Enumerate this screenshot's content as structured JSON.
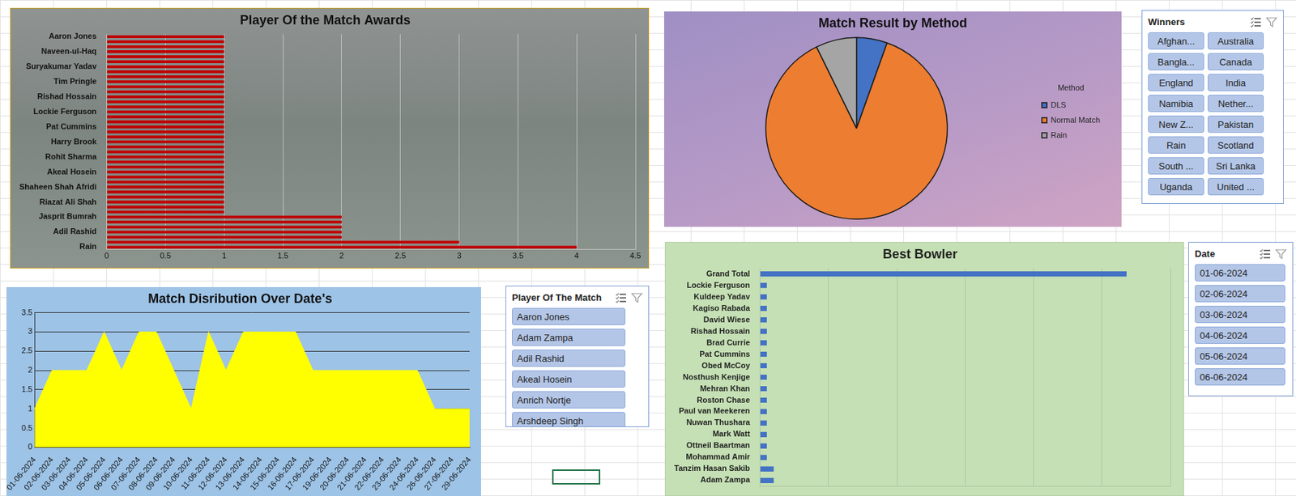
{
  "chart_data": [
    {
      "type": "bar",
      "title": "Player Of the Match Awards",
      "orientation": "horizontal",
      "categories": [
        "Aaron Jones",
        null,
        null,
        "Naveen-ul-Haq",
        null,
        null,
        "Suryakumar Yadav",
        null,
        null,
        "Tim Pringle",
        null,
        null,
        "Rishad Hossain",
        null,
        null,
        "Lockie Ferguson",
        null,
        null,
        "Pat Cummins",
        null,
        null,
        "Harry Brook",
        null,
        null,
        "Rohit Sharma",
        null,
        null,
        "Akeal Hosein",
        null,
        null,
        "Shaheen Shah Afridi",
        null,
        null,
        "Riazat Ali Shah",
        null,
        null,
        "Jasprit Bumrah",
        null,
        null,
        "Adil Rashid",
        null,
        null,
        "Rain"
      ],
      "values": [
        1,
        1,
        1,
        1,
        1,
        1,
        1,
        1,
        1,
        1,
        1,
        1,
        1,
        1,
        1,
        1,
        1,
        1,
        1,
        1,
        1,
        1,
        1,
        1,
        1,
        1,
        1,
        1,
        1,
        1,
        1,
        1,
        1,
        1,
        1,
        1,
        2,
        2,
        2,
        2,
        2,
        3,
        4
      ],
      "color": "#c00000",
      "xlim": [
        0,
        4.5
      ],
      "xticks": [
        0,
        0.5,
        1,
        1.5,
        2,
        2.5,
        3,
        3.5,
        4,
        4.5
      ],
      "grid": true
    },
    {
      "type": "pie",
      "title": "Match Result by Method",
      "legend_title": "Method",
      "categories": [
        "DLS",
        "Normal Match",
        "Rain"
      ],
      "values": [
        3,
        48,
        4
      ],
      "colors": [
        "#4472c4",
        "#ed7d31",
        "#a5a5a5"
      ],
      "legend": "right"
    },
    {
      "type": "area",
      "title": "Match Disribution Over Date's",
      "categories": [
        "01-06-2024",
        "02-06-2024",
        "03-06-2024",
        "04-06-2024",
        "05-06-2024",
        "06-06-2024",
        "07-06-2024",
        "08-06-2024",
        "09-06-2024",
        "10-06-2024",
        "11-06-2024",
        "12-06-2024",
        "13-06-2024",
        "14-06-2024",
        "15-06-2024",
        "16-06-2024",
        "17-06-2024",
        "19-06-2024",
        "20-06-2024",
        "21-06-2024",
        "22-06-2024",
        "23-06-2024",
        "24-06-2024",
        "26-06-2024",
        "27-06-2024",
        "29-06-2024"
      ],
      "values": [
        1,
        2,
        2,
        2,
        3,
        2,
        3,
        3,
        2,
        1,
        3,
        2,
        3,
        3,
        3,
        3,
        2,
        2,
        2,
        2,
        2,
        2,
        2,
        1,
        1,
        1
      ],
      "color": "#ffff00",
      "ylim": [
        0,
        3.5
      ],
      "yticks": [
        0,
        0.5,
        1,
        1.5,
        2,
        2.5,
        3,
        3.5
      ],
      "grid": true
    },
    {
      "type": "bar",
      "title": "Best Bowler",
      "orientation": "horizontal",
      "categories": [
        "Grand Total",
        "Lockie Ferguson",
        "Kuldeep Yadav",
        "Kagiso Rabada",
        "David Wiese",
        "Rishad Hossain",
        "Brad Currie",
        "Pat Cummins",
        "Obed McCoy",
        "Nosthush Kenjige",
        "Mehran Khan",
        "Roston Chase",
        "Paul van Meekeren",
        "Nuwan Thushara",
        "Mark Watt",
        "Ottneil Baartman",
        "Mohammad Amir",
        "Tanzim Hasan Sakib",
        "Adam Zampa"
      ],
      "values": [
        268,
        5,
        5,
        5,
        5,
        5,
        5,
        5,
        5,
        5,
        5,
        5,
        5,
        5,
        5,
        5,
        5,
        10,
        10
      ],
      "color": "#4472c4",
      "xlim": [
        0,
        300
      ],
      "xticks": [
        0,
        50,
        100,
        150,
        200,
        250,
        300
      ],
      "grid": true,
      "tick_labels": "y"
    }
  ],
  "slicers": [
    {
      "title": "Winners",
      "items": [
        "Afghan...",
        "Australia",
        "Bangla...",
        "Canada",
        "England",
        "India",
        "Namibia",
        "Nether...",
        "New Z...",
        "Pakistan",
        "Rain",
        "Scotland",
        "South ...",
        "Sri Lanka",
        "Uganda",
        "United ..."
      ]
    },
    {
      "title": "Player Of The Match",
      "items": [
        "Aaron Jones",
        "Adam Zampa",
        "Adil Rashid",
        "Akeal Hosein",
        "Anrich Nortje",
        "Arshdeep Singh"
      ]
    },
    {
      "title": "Date",
      "items": [
        "01-06-2024",
        "02-06-2024",
        "03-06-2024",
        "04-06-2024",
        "05-06-2024",
        "06-06-2024"
      ]
    }
  ]
}
